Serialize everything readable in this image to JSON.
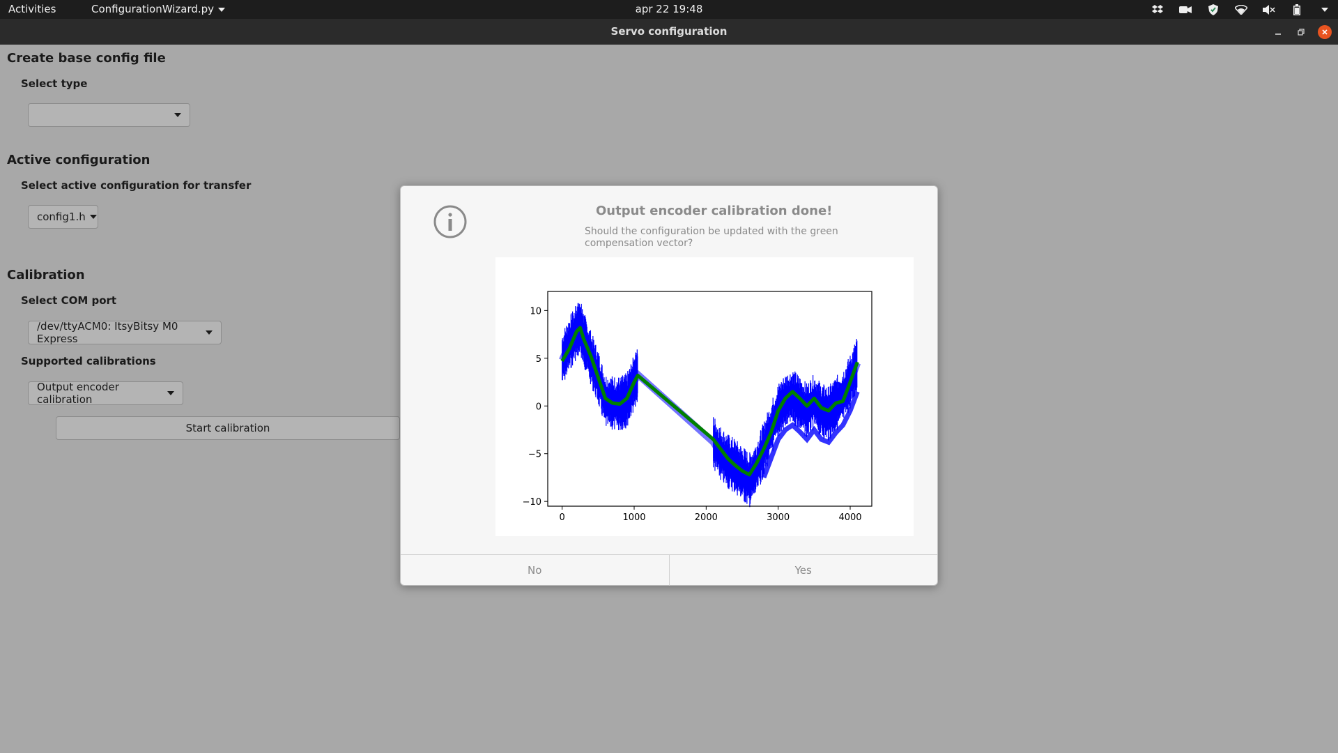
{
  "topbar": {
    "activities": "Activities",
    "app_menu": "ConfigurationWizard.py",
    "clock": "apr 22  19:48",
    "tray_icons": [
      "dropbox-icon",
      "camera-icon",
      "shield-icon",
      "wifi-icon",
      "volume-icon",
      "battery-icon",
      "chevron-down-icon"
    ]
  },
  "window": {
    "title": "Servo configuration"
  },
  "main": {
    "base_config": {
      "heading": "Create base config file",
      "select_label": "Select type",
      "select_value": ""
    },
    "active_config": {
      "heading": "Active configuration",
      "select_label": "Select active configuration for transfer",
      "select_value": "config1.h"
    },
    "calibration": {
      "heading": "Calibration",
      "com_label": "Select COM port",
      "com_value": "/dev/ttyACM0: ItsyBitsy M0 Express",
      "supported_label": "Supported calibrations",
      "supported_value": "Output encoder calibration",
      "start_button": "Start calibration"
    }
  },
  "dialog": {
    "title": "Output encoder calibration done!",
    "message": "Should the configuration be updated with the green compensation vector?",
    "no_label": "No",
    "yes_label": "Yes"
  },
  "chart_data": {
    "type": "line",
    "title": "",
    "xlabel": "",
    "ylabel": "",
    "xlim": [
      -200,
      4300
    ],
    "ylim": [
      -10.5,
      12
    ],
    "x_ticks": [
      0,
      1000,
      2000,
      3000,
      4000
    ],
    "y_ticks": [
      -10,
      -5,
      0,
      5,
      10
    ],
    "grid": false,
    "series": [
      {
        "color": "#0000ff",
        "style": "noisy-band",
        "points": [
          [
            0,
            4.8
          ],
          [
            100,
            6.5
          ],
          [
            200,
            7.8
          ],
          [
            250,
            8.3
          ],
          [
            300,
            7.0
          ],
          [
            400,
            5.0
          ],
          [
            500,
            3.0
          ],
          [
            600,
            0.5
          ],
          [
            700,
            0.3
          ],
          [
            800,
            0.2
          ],
          [
            900,
            0.6
          ],
          [
            1000,
            2.5
          ],
          [
            1050,
            3.3
          ],
          [
            2100,
            -3.8
          ],
          [
            2200,
            -5.0
          ],
          [
            2300,
            -5.8
          ],
          [
            2400,
            -6.3
          ],
          [
            2500,
            -7.0
          ],
          [
            2600,
            -7.8
          ],
          [
            2700,
            -6.5
          ],
          [
            2800,
            -4.5
          ],
          [
            2900,
            -2.5
          ],
          [
            3000,
            -0.5
          ],
          [
            3100,
            0.5
          ],
          [
            3200,
            1.0
          ],
          [
            3300,
            0.3
          ],
          [
            3400,
            -0.5
          ],
          [
            3500,
            0.5
          ],
          [
            3600,
            -0.5
          ],
          [
            3700,
            -0.8
          ],
          [
            3800,
            0.2
          ],
          [
            3900,
            1.0
          ],
          [
            4000,
            2.5
          ],
          [
            4100,
            4.5
          ]
        ]
      },
      {
        "color": "#008000",
        "style": "thick-line",
        "points": [
          [
            0,
            4.7
          ],
          [
            100,
            6.0
          ],
          [
            200,
            7.8
          ],
          [
            250,
            8.2
          ],
          [
            300,
            7.0
          ],
          [
            400,
            5.2
          ],
          [
            500,
            3.0
          ],
          [
            600,
            0.8
          ],
          [
            700,
            0.3
          ],
          [
            800,
            0.2
          ],
          [
            900,
            0.8
          ],
          [
            1000,
            2.5
          ],
          [
            1050,
            3.2
          ],
          [
            2100,
            -3.5
          ],
          [
            2200,
            -4.5
          ],
          [
            2300,
            -5.5
          ],
          [
            2400,
            -6.2
          ],
          [
            2500,
            -6.8
          ],
          [
            2600,
            -7.2
          ],
          [
            2700,
            -6.0
          ],
          [
            2800,
            -4.5
          ],
          [
            2900,
            -2.8
          ],
          [
            3000,
            -0.5
          ],
          [
            3100,
            0.8
          ],
          [
            3200,
            1.5
          ],
          [
            3300,
            0.8
          ],
          [
            3400,
            0.0
          ],
          [
            3500,
            0.8
          ],
          [
            3600,
            -0.2
          ],
          [
            3700,
            -0.5
          ],
          [
            3800,
            0.3
          ],
          [
            3900,
            0.5
          ],
          [
            4000,
            2.5
          ],
          [
            4100,
            4.6
          ]
        ]
      }
    ]
  }
}
